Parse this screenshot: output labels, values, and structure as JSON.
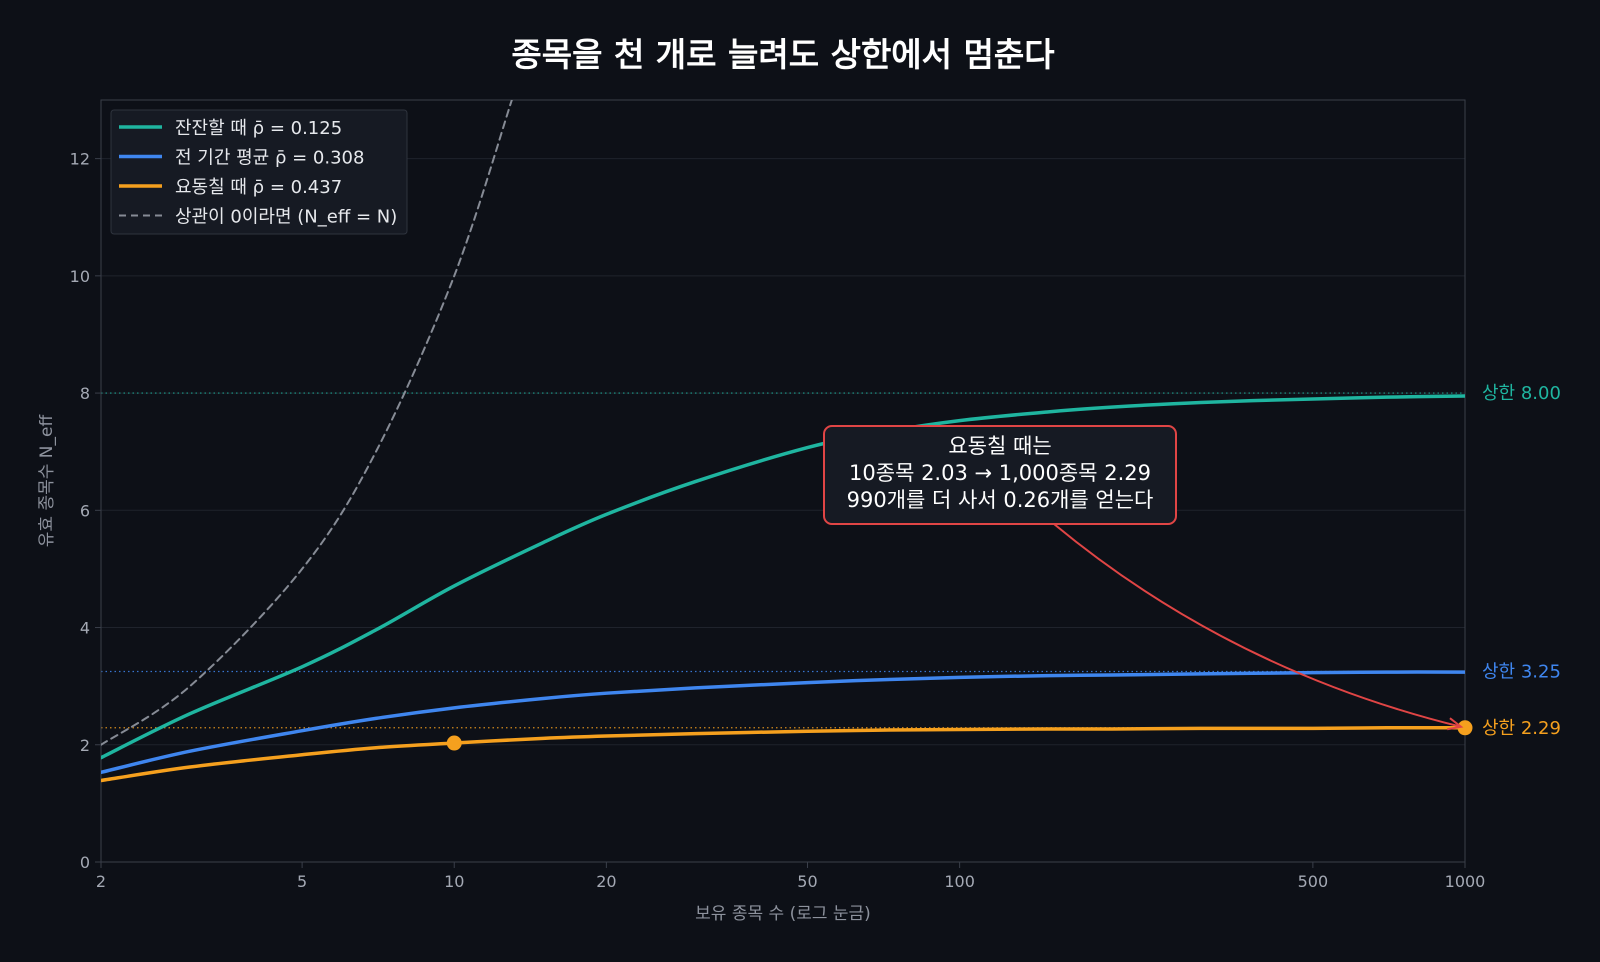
{
  "chart_data": {
    "type": "line",
    "title": "종목을 천 개로 늘려도 상한에서 멈춘다",
    "xlabel": "보유 종목 수 (로그 눈금)",
    "ylabel": "유효 종목수 N_eff",
    "x_scale": "log",
    "xlim": [
      2,
      1000
    ],
    "ylim": [
      0,
      13
    ],
    "x_ticks": [
      2,
      5,
      10,
      20,
      50,
      100,
      500,
      1000
    ],
    "x_tick_labels": [
      "2",
      "5",
      "10",
      "20",
      "50",
      "100",
      "500",
      "1000"
    ],
    "y_ticks": [
      0,
      2,
      4,
      6,
      8,
      10,
      12
    ],
    "y_tick_labels": [
      "0",
      "2",
      "4",
      "6",
      "8",
      "10",
      "12"
    ],
    "grid": true,
    "legend_position": "top-left",
    "series": [
      {
        "name": "잔잔할 때  ρ̄ = 0.125",
        "rho": 0.125,
        "color": "#1fb5a0",
        "style": "solid",
        "cap": 8.0,
        "cap_label": "상한 8.00",
        "x": [
          2,
          3,
          5,
          7,
          10,
          15,
          20,
          30,
          50,
          70,
          100,
          150,
          200,
          300,
          500,
          700,
          1000
        ],
        "y": [
          1.78,
          2.53,
          3.33,
          3.96,
          4.71,
          5.45,
          5.93,
          6.49,
          7.07,
          7.33,
          7.53,
          7.68,
          7.76,
          7.84,
          7.9,
          7.93,
          7.95
        ]
      },
      {
        "name": "전 기간 평균  ρ̄ = 0.308",
        "rho": 0.308,
        "color": "#3f86ef",
        "style": "solid",
        "cap": 3.25,
        "cap_label": "상한 3.25",
        "x": [
          2,
          3,
          5,
          7,
          10,
          15,
          20,
          30,
          50,
          70,
          100,
          150,
          200,
          300,
          500,
          700,
          1000
        ],
        "y": [
          1.53,
          1.89,
          2.24,
          2.45,
          2.63,
          2.79,
          2.88,
          2.97,
          3.06,
          3.11,
          3.15,
          3.18,
          3.19,
          3.21,
          3.23,
          3.24,
          3.24
        ]
      },
      {
        "name": "요동칠 때  ρ̄ = 0.437",
        "rho": 0.437,
        "color": "#f5a01e",
        "style": "solid",
        "cap": 2.29,
        "cap_label": "상한 2.29",
        "x": [
          2,
          3,
          5,
          7,
          10,
          15,
          20,
          30,
          50,
          70,
          100,
          150,
          200,
          300,
          500,
          700,
          1000
        ],
        "y": [
          1.39,
          1.62,
          1.83,
          1.95,
          2.03,
          2.11,
          2.15,
          2.19,
          2.23,
          2.25,
          2.26,
          2.27,
          2.27,
          2.28,
          2.28,
          2.29,
          2.29
        ]
      },
      {
        "name": "상관이 0이라면 (N_eff = N)",
        "color": "#868b95",
        "style": "dashed",
        "x": [
          2,
          3,
          5,
          7,
          10,
          13
        ],
        "y": [
          2,
          3,
          5,
          7,
          10,
          13
        ]
      }
    ],
    "markers": [
      {
        "x": 10,
        "y": 2.03,
        "color": "#f5a01e"
      },
      {
        "x": 1000,
        "y": 2.29,
        "color": "#f5a01e"
      }
    ],
    "annotation": {
      "lines": [
        "요동칠 때는",
        "10종목 2.03  →  1,000종목 2.29",
        "990개를 더 사서 0.26개를 얻는다"
      ],
      "text_x": 150,
      "text_y": 6.2,
      "arrow_to_x": 1000,
      "arrow_to_y": 2.29,
      "border_color": "#e04545",
      "arrow_color": "#e04545"
    }
  },
  "colors": {
    "background": "#0d1017",
    "plot_background": "#0d1017",
    "grid": "#1f232c",
    "axis": "#3a3f4a",
    "text": "#ffffff",
    "tick_text": "#a4a9b4"
  }
}
